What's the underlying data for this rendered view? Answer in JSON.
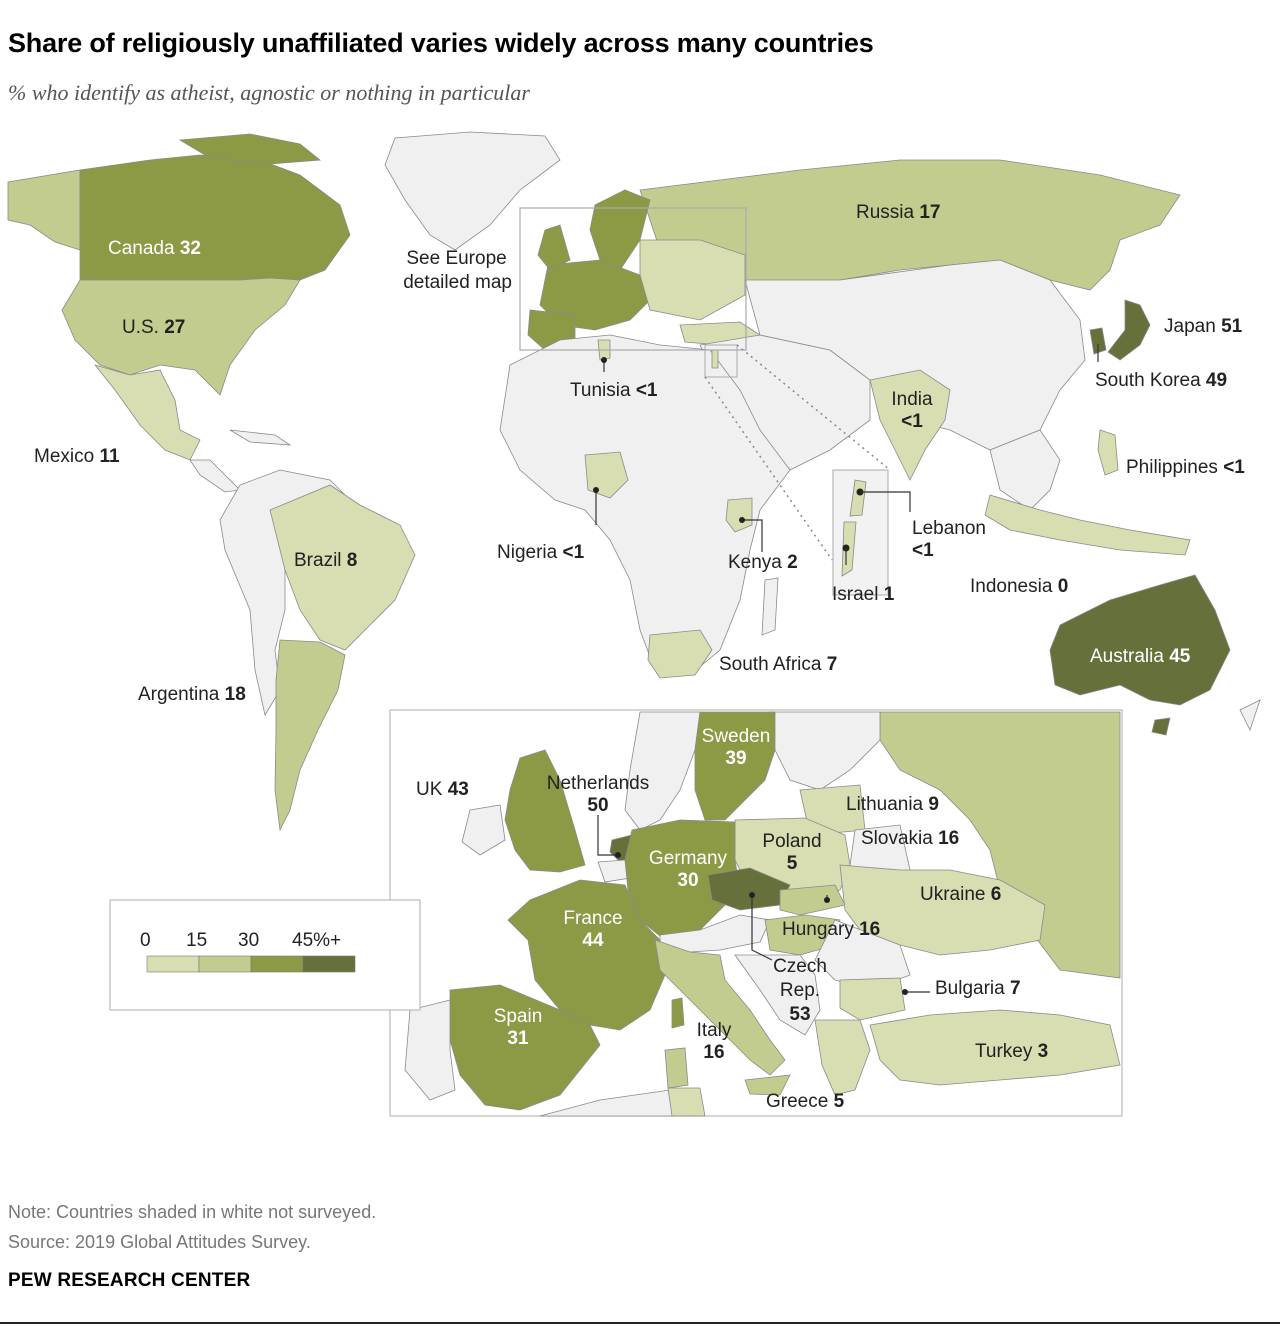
{
  "title": "Share of religiously unaffiliated varies widely across many countries",
  "subtitle": "% who identify as atheist, agnostic or nothing in particular",
  "colors": {
    "not_surveyed": "#f0f0f0",
    "bin_0_15": "#d8deb1",
    "bin_15_30": "#c2cc8e",
    "bin_30_45": "#8d9a45",
    "bin_45_plus": "#66703a",
    "border": "#888888"
  },
  "europe_callout": {
    "label_line1": "See Europe",
    "label_line2": "detailed map"
  },
  "legend": {
    "ticks": [
      "0",
      "15",
      "30",
      "45%+"
    ],
    "bins": [
      "bin_0_15",
      "bin_15_30",
      "bin_30_45",
      "bin_45_plus"
    ]
  },
  "world_labels": [
    {
      "name": "Canada",
      "value": "32",
      "color": "bin_30_45"
    },
    {
      "name": "U.S.",
      "value": "27",
      "color": "bin_15_30"
    },
    {
      "name": "Mexico",
      "value": "11",
      "color": "bin_0_15"
    },
    {
      "name": "Brazil",
      "value": "8",
      "color": "bin_0_15"
    },
    {
      "name": "Argentina",
      "value": "18",
      "color": "bin_15_30"
    },
    {
      "name": "Russia",
      "value": "17",
      "color": "bin_15_30"
    },
    {
      "name": "Japan",
      "value": "51",
      "color": "bin_45_plus"
    },
    {
      "name": "South Korea",
      "value": "49",
      "color": "bin_45_plus"
    },
    {
      "name": "Tunisia",
      "value": "<1",
      "color": "bin_0_15"
    },
    {
      "name": "India",
      "value": "<1",
      "color": "bin_0_15"
    },
    {
      "name": "Philippines",
      "value": "<1",
      "color": "bin_0_15"
    },
    {
      "name": "Nigeria",
      "value": "<1",
      "color": "bin_0_15"
    },
    {
      "name": "Kenya",
      "value": "2",
      "color": "bin_0_15"
    },
    {
      "name": "Lebanon",
      "value": "<1",
      "color": "bin_0_15"
    },
    {
      "name": "Israel",
      "value": "1",
      "color": "bin_0_15"
    },
    {
      "name": "Indonesia",
      "value": "0",
      "color": "bin_0_15"
    },
    {
      "name": "South Africa",
      "value": "7",
      "color": "bin_0_15"
    },
    {
      "name": "Australia",
      "value": "45",
      "color": "bin_45_plus"
    }
  ],
  "europe_labels": [
    {
      "name": "Sweden",
      "value": "39",
      "color": "bin_30_45"
    },
    {
      "name": "UK",
      "value": "43",
      "color": "bin_30_45"
    },
    {
      "name": "Netherlands",
      "value": "50",
      "color": "bin_45_plus"
    },
    {
      "name": "Lithuania",
      "value": "9",
      "color": "bin_0_15"
    },
    {
      "name": "Poland",
      "value": "5",
      "color": "bin_0_15"
    },
    {
      "name": "Slovakia",
      "value": "16",
      "color": "bin_15_30"
    },
    {
      "name": "Germany",
      "value": "30",
      "color": "bin_30_45"
    },
    {
      "name": "Ukraine",
      "value": "6",
      "color": "bin_0_15"
    },
    {
      "name": "France",
      "value": "44",
      "color": "bin_30_45"
    },
    {
      "name": "Hungary",
      "value": "16",
      "color": "bin_15_30"
    },
    {
      "name": "Czech",
      "name2": "Rep.",
      "value": "53",
      "color": "bin_45_plus"
    },
    {
      "name": "Bulgaria",
      "value": "7",
      "color": "bin_0_15"
    },
    {
      "name": "Spain",
      "value": "31",
      "color": "bin_30_45"
    },
    {
      "name": "Italy",
      "value": "16",
      "color": "bin_15_30"
    },
    {
      "name": "Turkey",
      "value": "3",
      "color": "bin_0_15"
    },
    {
      "name": "Greece",
      "value": "5",
      "color": "bin_0_15"
    }
  ],
  "note": "Note: Countries shaded in white not surveyed.",
  "source": "Source: 2019 Global Attitudes Survey.",
  "brand": "PEW RESEARCH CENTER"
}
